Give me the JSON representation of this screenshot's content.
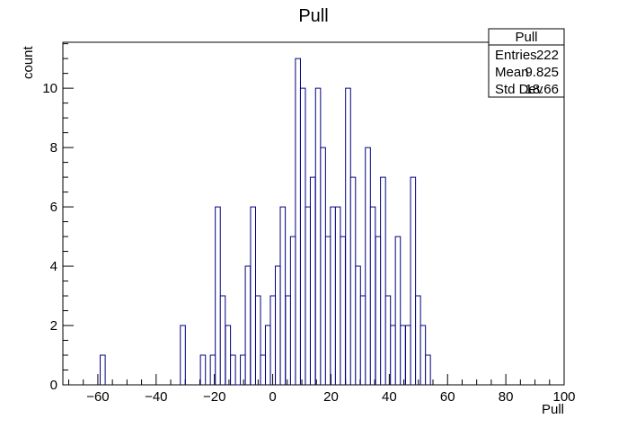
{
  "chart_data": {
    "type": "histogram",
    "title": "Pull",
    "xlabel": "Pull",
    "ylabel": "count",
    "xlim": [
      -72,
      100
    ],
    "ylim": [
      0,
      11.55
    ],
    "bin_width": 1.72,
    "x_ticks": [
      -60,
      -40,
      -20,
      0,
      20,
      40,
      60,
      80,
      100
    ],
    "y_ticks": [
      0,
      2,
      4,
      6,
      8,
      10
    ],
    "line_color": "#000080",
    "bins": [
      {
        "x": -59.2,
        "count": 1
      },
      {
        "x": -31.7,
        "count": 2
      },
      {
        "x": -24.8,
        "count": 1
      },
      {
        "x": -21.4,
        "count": 1
      },
      {
        "x": -19.7,
        "count": 6
      },
      {
        "x": -18.0,
        "count": 3
      },
      {
        "x": -16.2,
        "count": 2
      },
      {
        "x": -14.5,
        "count": 1
      },
      {
        "x": -12.8,
        "count": 0
      },
      {
        "x": -11.1,
        "count": 1
      },
      {
        "x": -9.4,
        "count": 4
      },
      {
        "x": -7.6,
        "count": 6
      },
      {
        "x": -5.9,
        "count": 3
      },
      {
        "x": -4.2,
        "count": 1
      },
      {
        "x": -2.5,
        "count": 2
      },
      {
        "x": -0.8,
        "count": 3
      },
      {
        "x": 0.9,
        "count": 4
      },
      {
        "x": 2.6,
        "count": 6
      },
      {
        "x": 4.4,
        "count": 3
      },
      {
        "x": 6.1,
        "count": 5
      },
      {
        "x": 7.8,
        "count": 11
      },
      {
        "x": 9.5,
        "count": 10
      },
      {
        "x": 11.2,
        "count": 6
      },
      {
        "x": 12.9,
        "count": 7
      },
      {
        "x": 14.7,
        "count": 10
      },
      {
        "x": 16.4,
        "count": 8
      },
      {
        "x": 18.1,
        "count": 5
      },
      {
        "x": 19.8,
        "count": 6
      },
      {
        "x": 21.5,
        "count": 6
      },
      {
        "x": 23.2,
        "count": 5
      },
      {
        "x": 25.0,
        "count": 10
      },
      {
        "x": 26.7,
        "count": 7
      },
      {
        "x": 28.4,
        "count": 4
      },
      {
        "x": 30.1,
        "count": 3
      },
      {
        "x": 31.8,
        "count": 8
      },
      {
        "x": 33.5,
        "count": 6
      },
      {
        "x": 35.3,
        "count": 5
      },
      {
        "x": 37.0,
        "count": 7
      },
      {
        "x": 38.7,
        "count": 3
      },
      {
        "x": 40.4,
        "count": 2
      },
      {
        "x": 42.1,
        "count": 5
      },
      {
        "x": 43.8,
        "count": 2
      },
      {
        "x": 45.6,
        "count": 2
      },
      {
        "x": 47.3,
        "count": 7
      },
      {
        "x": 49.0,
        "count": 3
      },
      {
        "x": 50.7,
        "count": 2
      },
      {
        "x": 52.4,
        "count": 1
      }
    ]
  },
  "stats_box": {
    "title": "Pull",
    "rows": [
      {
        "label": "Entries",
        "value": "222"
      },
      {
        "label": "Mean",
        "value": "9.825"
      },
      {
        "label": "Std Dev",
        "value": "18.66"
      }
    ]
  }
}
